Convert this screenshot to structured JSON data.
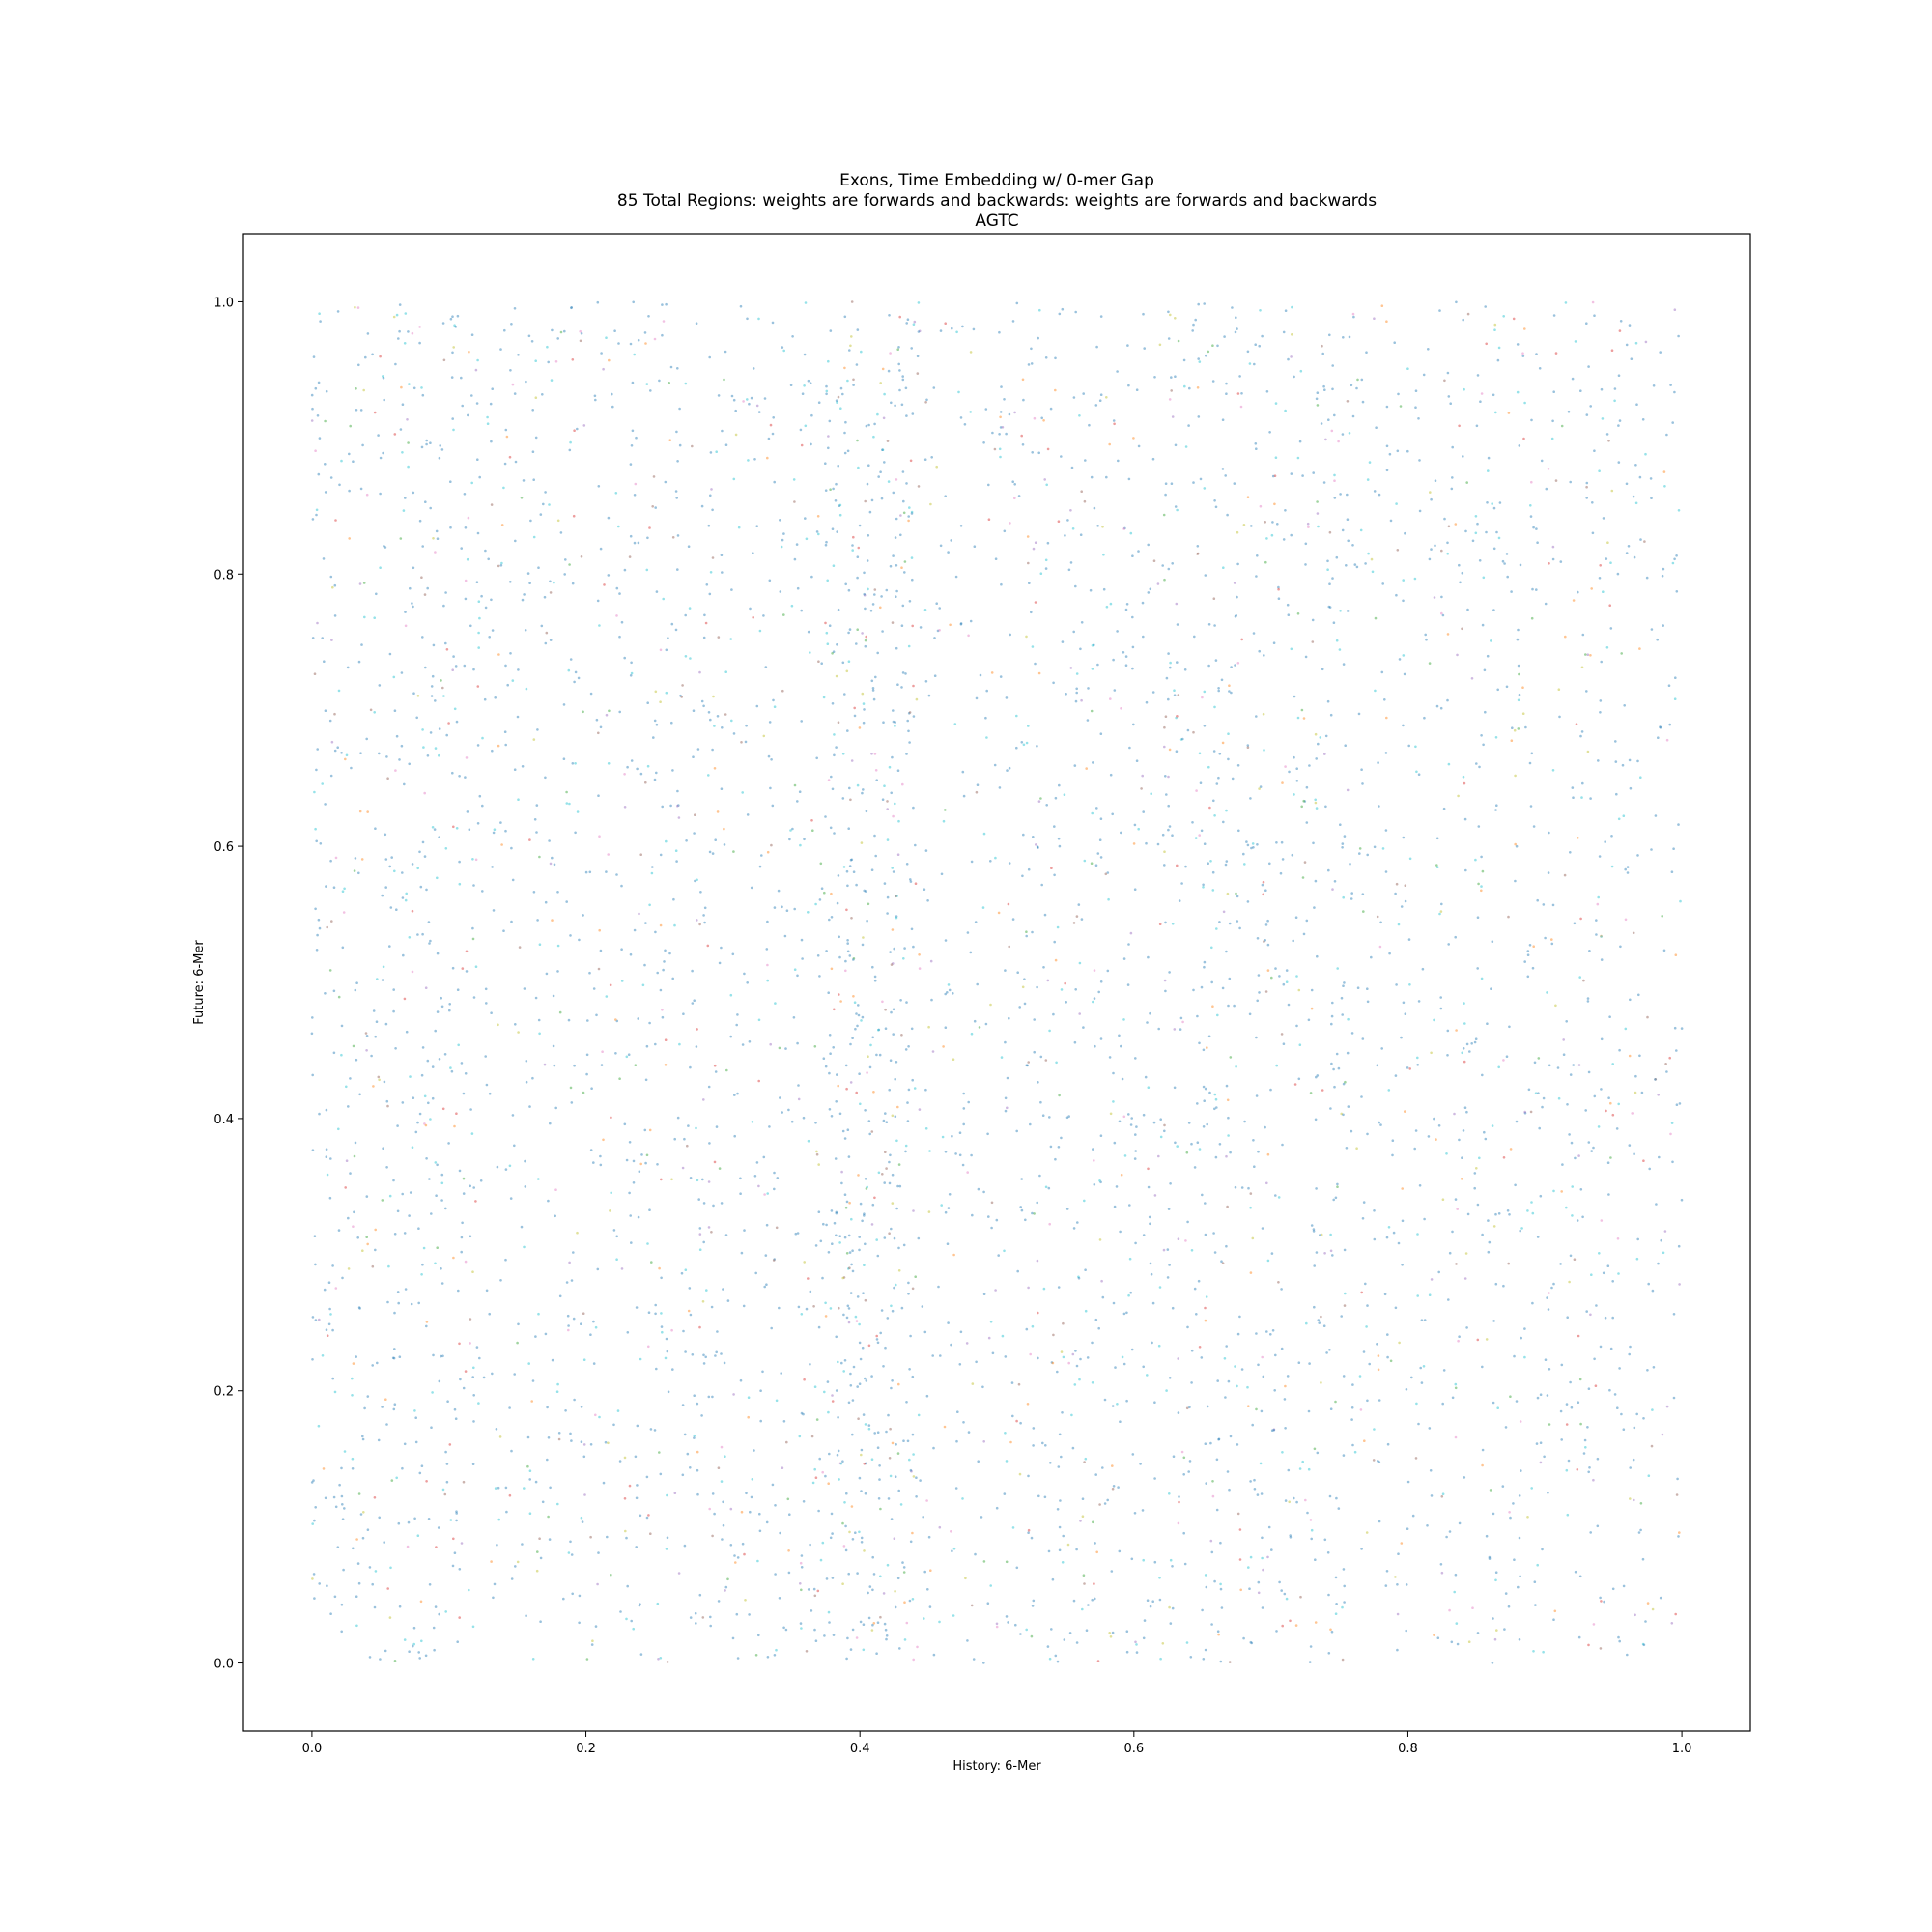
{
  "chart_data": {
    "type": "scatter",
    "title_lines": [
      "Exons, Time Embedding w/ 0-mer Gap",
      "85 Total Regions: weights are forwards and backwards: weights are forwards and backwards",
      "AGTC"
    ],
    "xlabel": "History: 6-Mer",
    "ylabel": "Future: 6-Mer",
    "xlim": [
      -0.05,
      1.05
    ],
    "ylim": [
      -0.05,
      1.05
    ],
    "xticks": [
      "0.0",
      "0.2",
      "0.4",
      "0.6",
      "0.8",
      "1.0"
    ],
    "yticks": [
      "0.0",
      "0.2",
      "0.4",
      "0.6",
      "0.8",
      "1.0"
    ],
    "xtick_values": [
      0.0,
      0.2,
      0.4,
      0.6,
      0.8,
      1.0
    ],
    "ytick_values": [
      0.0,
      0.2,
      0.4,
      0.6,
      0.8,
      1.0
    ],
    "grid": false,
    "legend": "none",
    "series_colors": [
      "#1f77b4",
      "#ff7f0e",
      "#2ca02c",
      "#d62728",
      "#9467bd",
      "#8c564b",
      "#e377c2",
      "#17becf",
      "#bcbd22"
    ],
    "point_alpha": 0.45,
    "points_per_region": 110,
    "regions": [
      {
        "x": [
          0.0,
          0.125
        ],
        "y": [
          0.0,
          1.0
        ],
        "density": 1.0
      },
      {
        "x": [
          0.125,
          0.25
        ],
        "y": [
          0.0,
          1.0
        ],
        "density": 0.75
      },
      {
        "x": [
          0.25,
          0.375
        ],
        "y": [
          0.0,
          1.0
        ],
        "density": 0.85
      },
      {
        "x": [
          0.375,
          0.44
        ],
        "y": [
          0.0,
          1.0
        ],
        "density": 0.95
      },
      {
        "x": [
          0.44,
          0.5
        ],
        "y": [
          0.0,
          1.0
        ],
        "density": 0.3
      },
      {
        "x": [
          0.5,
          0.625
        ],
        "y": [
          0.0,
          1.0
        ],
        "density": 0.85
      },
      {
        "x": [
          0.625,
          0.75
        ],
        "y": [
          0.0,
          1.0
        ],
        "density": 1.0
      },
      {
        "x": [
          0.75,
          0.875
        ],
        "y": [
          0.0,
          1.0
        ],
        "density": 0.75
      },
      {
        "x": [
          0.875,
          1.0
        ],
        "y": [
          0.0,
          1.0
        ],
        "density": 0.75
      }
    ]
  }
}
